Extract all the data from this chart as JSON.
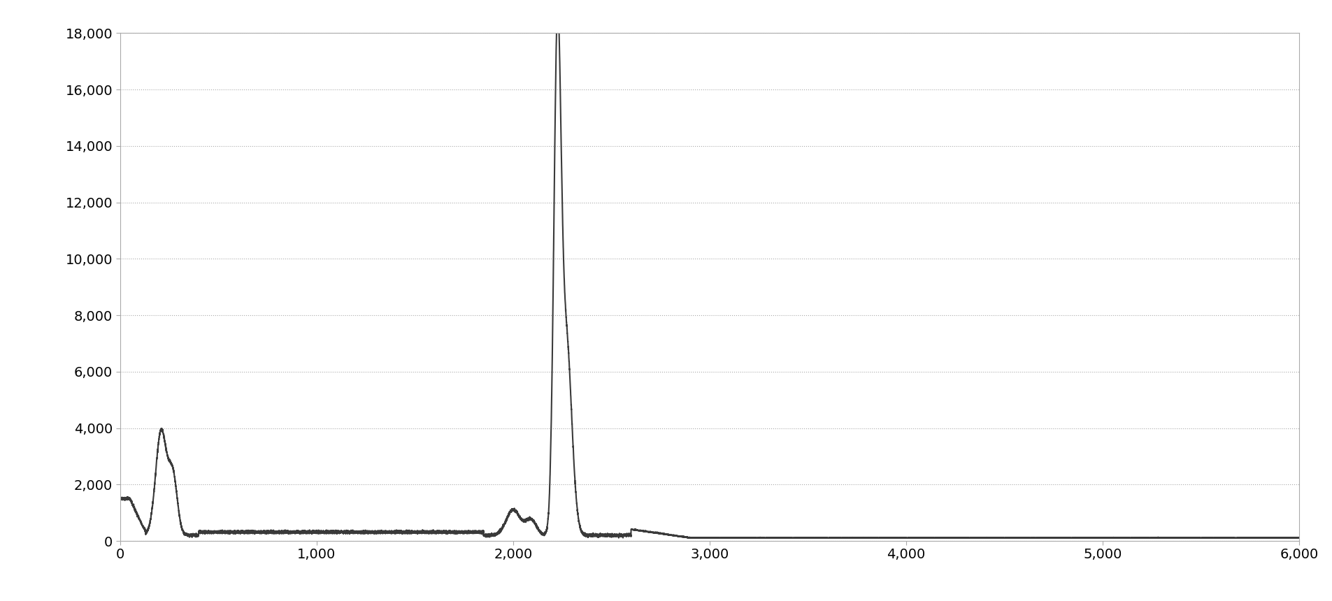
{
  "title": "",
  "xlabel": "",
  "ylabel": "",
  "xlim": [
    0,
    6000
  ],
  "ylim": [
    0,
    18000
  ],
  "xticks": [
    0,
    1000,
    2000,
    3000,
    4000,
    5000,
    6000
  ],
  "yticks": [
    0,
    2000,
    4000,
    6000,
    8000,
    10000,
    12000,
    14000,
    16000,
    18000
  ],
  "line_color": "#3a3a3a",
  "line_width": 1.5,
  "background_color": "#ffffff",
  "plot_bg_color": "#ffffff",
  "grid_color": "#aaaaaa",
  "spine_color": "#aaaaaa",
  "tick_color": "#000000",
  "tick_fontsize": 14,
  "figsize": [
    19.06,
    8.6
  ],
  "dpi": 100
}
